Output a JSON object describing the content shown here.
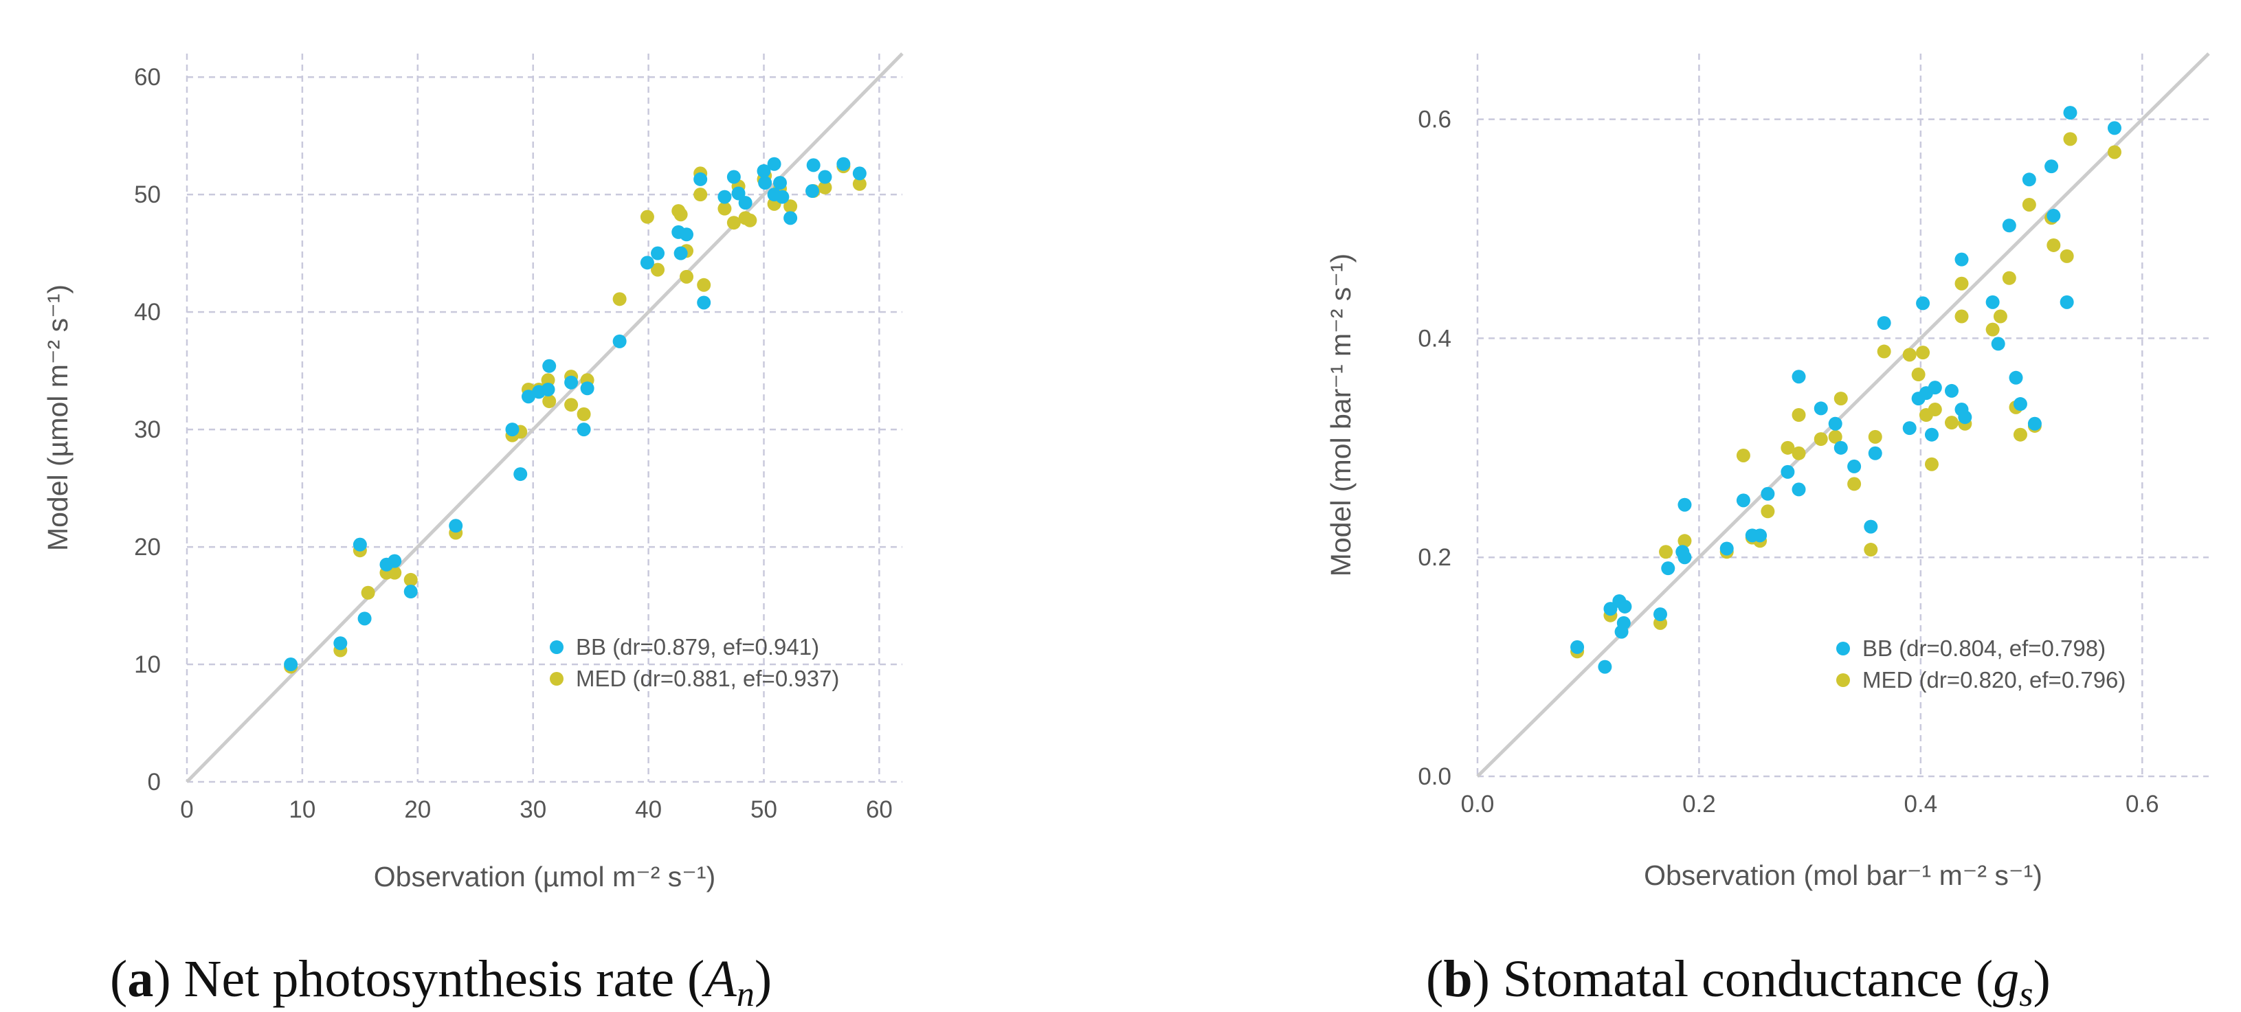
{
  "colors": {
    "bb": "#1ab8e8",
    "med": "#cfc530"
  },
  "chart_data": [
    {
      "type": "scatter",
      "xlabel": "Observation (µmol m⁻² s⁻¹)",
      "ylabel": "Model (µmol m⁻² s⁻¹)",
      "xlim": [
        0,
        62
      ],
      "ylim": [
        0,
        62
      ],
      "xticks": [
        0,
        10,
        20,
        30,
        40,
        50,
        60
      ],
      "yticks": [
        0,
        10,
        20,
        30,
        40,
        50,
        60
      ],
      "xtick_labels": [
        "0",
        "10",
        "20",
        "30",
        "40",
        "50",
        "60"
      ],
      "ytick_labels": [
        "0",
        "10",
        "20",
        "30",
        "40",
        "50",
        "60"
      ],
      "reference_line": "y = x",
      "legend_position": "lower-right",
      "caption": {
        "label": "a",
        "text": "Net photosynthesis rate (",
        "symbol": "A",
        "sub": "n",
        "close": ")"
      },
      "series": [
        {
          "name": "BB",
          "legend": "BB (dr=0.879, ef=0.941)",
          "points": [
            [
              9,
              10
            ],
            [
              13.3,
              11.8
            ],
            [
              15,
              20.2
            ],
            [
              15.4,
              13.9
            ],
            [
              17.3,
              18.5
            ],
            [
              18,
              18.8
            ],
            [
              19.4,
              16.2
            ],
            [
              23.3,
              21.8
            ],
            [
              28.2,
              30
            ],
            [
              28.9,
              26.2
            ],
            [
              29.6,
              32.8
            ],
            [
              30.5,
              33.2
            ],
            [
              31.4,
              35.4
            ],
            [
              31.3,
              33.4
            ],
            [
              33.3,
              34
            ],
            [
              34.4,
              30
            ],
            [
              34.7,
              33.5
            ],
            [
              37.5,
              37.5
            ],
            [
              39.9,
              44.2
            ],
            [
              40.8,
              45
            ],
            [
              42.6,
              46.8
            ],
            [
              42.8,
              45
            ],
            [
              43.3,
              46.6
            ],
            [
              44.5,
              51.3
            ],
            [
              44.8,
              40.8
            ],
            [
              46.6,
              49.8
            ],
            [
              47.4,
              51.5
            ],
            [
              48.4,
              49.3
            ],
            [
              47.8,
              50.1
            ],
            [
              50,
              52
            ],
            [
              50.1,
              51
            ],
            [
              50.9,
              50
            ],
            [
              50.9,
              52.6
            ],
            [
              51.4,
              51
            ],
            [
              51.6,
              49.8
            ],
            [
              52.3,
              48
            ],
            [
              54.3,
              52.5
            ],
            [
              54.2,
              50.3
            ],
            [
              55.3,
              51.5
            ],
            [
              56.9,
              52.6
            ],
            [
              58.3,
              51.8
            ]
          ]
        },
        {
          "name": "MED",
          "legend": "MED (dr=0.881, ef=0.937)",
          "points": [
            [
              9,
              9.8
            ],
            [
              13.3,
              11.2
            ],
            [
              15,
              19.7
            ],
            [
              15.7,
              16.1
            ],
            [
              17.3,
              17.8
            ],
            [
              18,
              17.8
            ],
            [
              19.4,
              17.2
            ],
            [
              23.3,
              21.2
            ],
            [
              28.2,
              29.5
            ],
            [
              28.9,
              29.8
            ],
            [
              29.6,
              33.4
            ],
            [
              30.5,
              33.4
            ],
            [
              31.4,
              32.4
            ],
            [
              31.3,
              34.2
            ],
            [
              33.3,
              34.5
            ],
            [
              33.3,
              32.1
            ],
            [
              34.4,
              31.3
            ],
            [
              34.7,
              34.2
            ],
            [
              37.5,
              41.1
            ],
            [
              39.9,
              48.1
            ],
            [
              40.8,
              43.6
            ],
            [
              42.6,
              48.6
            ],
            [
              42.8,
              48.3
            ],
            [
              43.3,
              43
            ],
            [
              43.3,
              45.2
            ],
            [
              44.5,
              50
            ],
            [
              44.5,
              51.8
            ],
            [
              44.8,
              42.3
            ],
            [
              46.6,
              48.8
            ],
            [
              47.4,
              47.6
            ],
            [
              47.8,
              50.7
            ],
            [
              48.4,
              48
            ],
            [
              48.8,
              47.8
            ],
            [
              50,
              51.3
            ],
            [
              50.1,
              51.6
            ],
            [
              50.9,
              49.2
            ],
            [
              51.4,
              50.5
            ],
            [
              52.3,
              49
            ],
            [
              54.3,
              50.3
            ],
            [
              55.3,
              50.6
            ],
            [
              56.9,
              52.4
            ],
            [
              58.3,
              50.9
            ]
          ]
        }
      ]
    },
    {
      "type": "scatter",
      "xlabel": "Observation (mol bar⁻¹ m⁻² s⁻¹)",
      "ylabel": "Model (mol bar⁻¹ m⁻² s⁻¹)",
      "xlim": [
        0,
        0.66
      ],
      "ylim": [
        0,
        0.66
      ],
      "xticks": [
        0,
        0.2,
        0.4,
        0.6
      ],
      "yticks": [
        0,
        0.2,
        0.4,
        0.6
      ],
      "xtick_labels": [
        "0.0",
        "0.2",
        "0.4",
        "0.6"
      ],
      "ytick_labels": [
        "0.0",
        "0.2",
        "0.4",
        "0.6"
      ],
      "reference_line": "y = x",
      "legend_position": "lower-right",
      "caption": {
        "label": "b",
        "text": "Stomatal conductance (",
        "symbol": "g",
        "sub": "s",
        "close": ")"
      },
      "series": [
        {
          "name": "BB",
          "legend": "BB (dr=0.804, ef=0.798)",
          "points": [
            [
              0.09,
              0.118
            ],
            [
              0.115,
              0.1
            ],
            [
              0.12,
              0.153
            ],
            [
              0.128,
              0.16
            ],
            [
              0.13,
              0.132
            ],
            [
              0.132,
              0.14
            ],
            [
              0.133,
              0.155
            ],
            [
              0.165,
              0.148
            ],
            [
              0.172,
              0.19
            ],
            [
              0.185,
              0.205
            ],
            [
              0.187,
              0.2
            ],
            [
              0.187,
              0.248
            ],
            [
              0.225,
              0.208
            ],
            [
              0.24,
              0.252
            ],
            [
              0.248,
              0.22
            ],
            [
              0.255,
              0.22
            ],
            [
              0.262,
              0.258
            ],
            [
              0.28,
              0.278
            ],
            [
              0.29,
              0.365
            ],
            [
              0.29,
              0.262
            ],
            [
              0.31,
              0.336
            ],
            [
              0.323,
              0.322
            ],
            [
              0.328,
              0.3
            ],
            [
              0.34,
              0.283
            ],
            [
              0.355,
              0.228
            ],
            [
              0.359,
              0.295
            ],
            [
              0.367,
              0.414
            ],
            [
              0.39,
              0.318
            ],
            [
              0.398,
              0.345
            ],
            [
              0.402,
              0.432
            ],
            [
              0.405,
              0.35
            ],
            [
              0.41,
              0.312
            ],
            [
              0.413,
              0.355
            ],
            [
              0.428,
              0.352
            ],
            [
              0.437,
              0.472
            ],
            [
              0.437,
              0.335
            ],
            [
              0.44,
              0.328
            ],
            [
              0.465,
              0.433
            ],
            [
              0.47,
              0.395
            ],
            [
              0.48,
              0.503
            ],
            [
              0.486,
              0.364
            ],
            [
              0.49,
              0.34
            ],
            [
              0.498,
              0.545
            ],
            [
              0.503,
              0.322
            ],
            [
              0.518,
              0.557
            ],
            [
              0.52,
              0.512
            ],
            [
              0.532,
              0.433
            ],
            [
              0.535,
              0.606
            ],
            [
              0.575,
              0.592
            ]
          ]
        },
        {
          "name": "MED",
          "legend": "MED (dr=0.820, ef=0.796)",
          "points": [
            [
              0.09,
              0.114
            ],
            [
              0.12,
              0.147
            ],
            [
              0.165,
              0.14
            ],
            [
              0.17,
              0.205
            ],
            [
              0.187,
              0.215
            ],
            [
              0.225,
              0.205
            ],
            [
              0.24,
              0.293
            ],
            [
              0.248,
              0.218
            ],
            [
              0.255,
              0.215
            ],
            [
              0.262,
              0.242
            ],
            [
              0.28,
              0.3
            ],
            [
              0.29,
              0.33
            ],
            [
              0.29,
              0.295
            ],
            [
              0.31,
              0.308
            ],
            [
              0.323,
              0.31
            ],
            [
              0.328,
              0.345
            ],
            [
              0.34,
              0.267
            ],
            [
              0.355,
              0.207
            ],
            [
              0.359,
              0.31
            ],
            [
              0.367,
              0.388
            ],
            [
              0.39,
              0.385
            ],
            [
              0.398,
              0.367
            ],
            [
              0.402,
              0.387
            ],
            [
              0.405,
              0.33
            ],
            [
              0.41,
              0.285
            ],
            [
              0.413,
              0.335
            ],
            [
              0.428,
              0.323
            ],
            [
              0.437,
              0.45
            ],
            [
              0.437,
              0.42
            ],
            [
              0.44,
              0.322
            ],
            [
              0.465,
              0.408
            ],
            [
              0.472,
              0.42
            ],
            [
              0.48,
              0.455
            ],
            [
              0.486,
              0.337
            ],
            [
              0.49,
              0.312
            ],
            [
              0.498,
              0.522
            ],
            [
              0.503,
              0.32
            ],
            [
              0.518,
              0.51
            ],
            [
              0.52,
              0.485
            ],
            [
              0.532,
              0.475
            ],
            [
              0.535,
              0.582
            ],
            [
              0.575,
              0.57
            ]
          ]
        }
      ]
    }
  ]
}
